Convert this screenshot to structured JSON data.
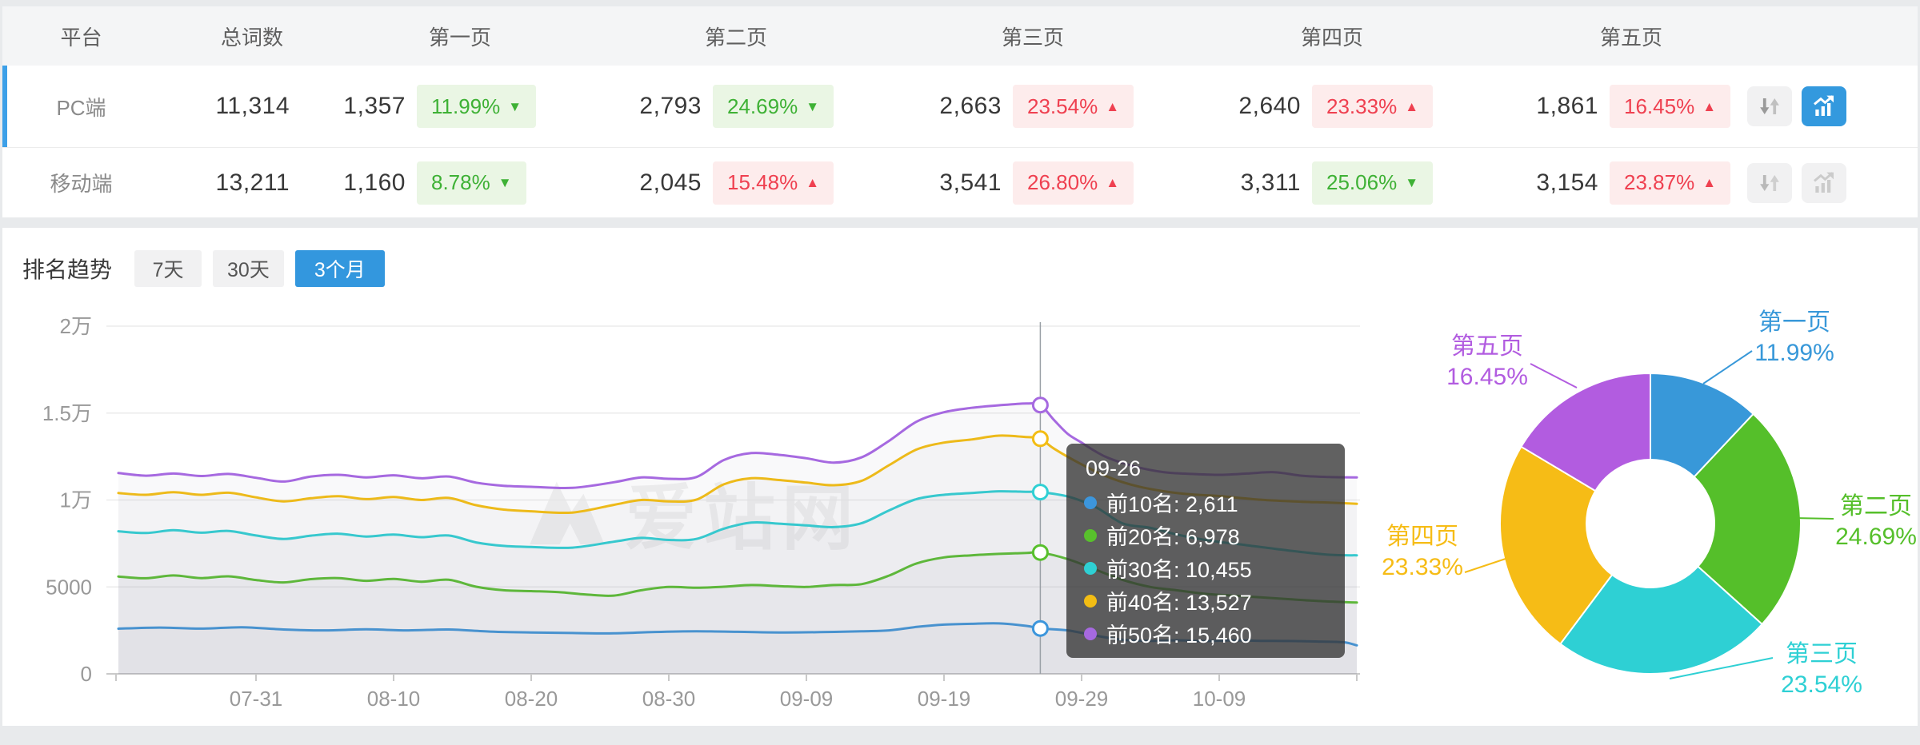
{
  "table": {
    "headers": {
      "platform": "平台",
      "total": "总词数",
      "page1": "第一页",
      "page2": "第二页",
      "page3": "第三页",
      "page4": "第四页",
      "page5": "第五页"
    },
    "rows": [
      {
        "platform": "PC端",
        "total": "11,314",
        "selected": true,
        "pages": [
          {
            "count": "1,357",
            "pct": "11.99%",
            "dir": "down",
            "tone": "good"
          },
          {
            "count": "2,793",
            "pct": "24.69%",
            "dir": "down",
            "tone": "good"
          },
          {
            "count": "2,663",
            "pct": "23.54%",
            "dir": "up",
            "tone": "bad"
          },
          {
            "count": "2,640",
            "pct": "23.33%",
            "dir": "up",
            "tone": "bad"
          },
          {
            "count": "1,861",
            "pct": "16.45%",
            "dir": "up",
            "tone": "bad"
          }
        ],
        "chart_button_active": true
      },
      {
        "platform": "移动端",
        "total": "13,211",
        "selected": false,
        "pages": [
          {
            "count": "1,160",
            "pct": "8.78%",
            "dir": "down",
            "tone": "good"
          },
          {
            "count": "2,045",
            "pct": "15.48%",
            "dir": "up",
            "tone": "bad"
          },
          {
            "count": "3,541",
            "pct": "26.80%",
            "dir": "up",
            "tone": "bad"
          },
          {
            "count": "3,311",
            "pct": "25.06%",
            "dir": "down",
            "tone": "good"
          },
          {
            "count": "3,154",
            "pct": "23.87%",
            "dir": "up",
            "tone": "bad"
          }
        ],
        "chart_button_active": false
      }
    ]
  },
  "trend": {
    "title": "排名趋势",
    "tabs": [
      {
        "label": "7天",
        "active": false
      },
      {
        "label": "30天",
        "active": false
      },
      {
        "label": "3个月",
        "active": true
      }
    ]
  },
  "watermark": {
    "text": "爱站网"
  },
  "tooltip": {
    "title": "09-26",
    "items": [
      {
        "label": "前10名",
        "value": "2,611"
      },
      {
        "label": "前20名",
        "value": "6,978"
      },
      {
        "label": "前30名",
        "value": "10,455"
      },
      {
        "label": "前40名",
        "value": "13,527"
      },
      {
        "label": "前50名",
        "value": "15,460"
      }
    ]
  },
  "chart_data": [
    {
      "type": "line",
      "title": "排名趋势 (3个月)",
      "x_axis": {
        "start_date": "07-21",
        "unit": "day",
        "tick_labels": [
          "07-31",
          "08-10",
          "08-20",
          "08-30",
          "09-09",
          "09-19",
          "09-29",
          "10-09"
        ],
        "tick_days": [
          10,
          20,
          30,
          40,
          50,
          60,
          70,
          80
        ]
      },
      "y_axis": {
        "values": [
          0,
          5000,
          10000,
          15000,
          20000
        ],
        "tick_labels": [
          "0",
          "5000",
          "1万",
          "1.5万",
          "2万"
        ],
        "ylim": [
          0,
          20000
        ],
        "grid": true
      },
      "highlight_day": 67,
      "highlight_date": "09-26",
      "series": [
        {
          "name": "前10名",
          "color": "#3c96dc",
          "points": [
            [
              0,
              2600
            ],
            [
              3,
              2660
            ],
            [
              6,
              2600
            ],
            [
              9,
              2680
            ],
            [
              12,
              2550
            ],
            [
              15,
              2500
            ],
            [
              18,
              2560
            ],
            [
              21,
              2500
            ],
            [
              24,
              2550
            ],
            [
              27,
              2430
            ],
            [
              30,
              2380
            ],
            [
              33,
              2350
            ],
            [
              36,
              2330
            ],
            [
              39,
              2410
            ],
            [
              42,
              2450
            ],
            [
              45,
              2420
            ],
            [
              48,
              2380
            ],
            [
              51,
              2400
            ],
            [
              54,
              2450
            ],
            [
              56,
              2500
            ],
            [
              58,
              2700
            ],
            [
              60,
              2830
            ],
            [
              62,
              2880
            ],
            [
              64,
              2900
            ],
            [
              66,
              2760
            ],
            [
              67,
              2611
            ],
            [
              69,
              2500
            ],
            [
              71,
              2200
            ],
            [
              73,
              1960
            ],
            [
              75,
              1900
            ],
            [
              77,
              1930
            ],
            [
              79,
              1890
            ],
            [
              81,
              1930
            ],
            [
              83,
              1900
            ],
            [
              85,
              1890
            ],
            [
              87,
              1860
            ],
            [
              89,
              1820
            ],
            [
              90,
              1640
            ]
          ]
        },
        {
          "name": "前20名",
          "color": "#58c02c",
          "points": [
            [
              0,
              5600
            ],
            [
              2,
              5500
            ],
            [
              4,
              5660
            ],
            [
              6,
              5510
            ],
            [
              8,
              5610
            ],
            [
              10,
              5400
            ],
            [
              12,
              5260
            ],
            [
              14,
              5450
            ],
            [
              16,
              5510
            ],
            [
              18,
              5350
            ],
            [
              20,
              5460
            ],
            [
              22,
              5300
            ],
            [
              24,
              5410
            ],
            [
              26,
              5010
            ],
            [
              28,
              4810
            ],
            [
              30,
              4760
            ],
            [
              32,
              4700
            ],
            [
              34,
              4560
            ],
            [
              36,
              4500
            ],
            [
              38,
              4810
            ],
            [
              40,
              5000
            ],
            [
              42,
              4950
            ],
            [
              44,
              5010
            ],
            [
              46,
              5110
            ],
            [
              48,
              5050
            ],
            [
              50,
              5000
            ],
            [
              52,
              5110
            ],
            [
              54,
              5160
            ],
            [
              56,
              5650
            ],
            [
              58,
              6350
            ],
            [
              60,
              6700
            ],
            [
              62,
              6820
            ],
            [
              64,
              6900
            ],
            [
              66,
              6950
            ],
            [
              67,
              6978
            ],
            [
              69,
              6600
            ],
            [
              71,
              6000
            ],
            [
              73,
              5400
            ],
            [
              75,
              5000
            ],
            [
              77,
              4800
            ],
            [
              79,
              4600
            ],
            [
              81,
              4500
            ],
            [
              83,
              4400
            ],
            [
              85,
              4300
            ],
            [
              87,
              4200
            ],
            [
              90,
              4100
            ]
          ]
        },
        {
          "name": "前30名",
          "color": "#2fd0d4",
          "points": [
            [
              0,
              8200
            ],
            [
              2,
              8100
            ],
            [
              4,
              8260
            ],
            [
              6,
              8120
            ],
            [
              8,
              8220
            ],
            [
              10,
              7960
            ],
            [
              12,
              7760
            ],
            [
              14,
              7950
            ],
            [
              16,
              8060
            ],
            [
              18,
              7900
            ],
            [
              20,
              8010
            ],
            [
              22,
              7860
            ],
            [
              24,
              7960
            ],
            [
              26,
              7560
            ],
            [
              28,
              7360
            ],
            [
              30,
              7300
            ],
            [
              33,
              7260
            ],
            [
              36,
              7600
            ],
            [
              38,
              7820
            ],
            [
              40,
              7700
            ],
            [
              42,
              7760
            ],
            [
              44,
              8350
            ],
            [
              46,
              8700
            ],
            [
              48,
              8640
            ],
            [
              50,
              8540
            ],
            [
              52,
              8440
            ],
            [
              54,
              8660
            ],
            [
              56,
              9400
            ],
            [
              58,
              10050
            ],
            [
              60,
              10300
            ],
            [
              62,
              10400
            ],
            [
              64,
              10500
            ],
            [
              66,
              10470
            ],
            [
              67,
              10455
            ],
            [
              69,
              10200
            ],
            [
              71,
              9600
            ],
            [
              73,
              8650
            ],
            [
              75,
              8400
            ],
            [
              77,
              8000
            ],
            [
              79,
              7700
            ],
            [
              82,
              7400
            ],
            [
              85,
              7100
            ],
            [
              88,
              6850
            ],
            [
              90,
              6820
            ]
          ]
        },
        {
          "name": "前40名",
          "color": "#f3bd14",
          "points": [
            [
              0,
              10400
            ],
            [
              2,
              10300
            ],
            [
              4,
              10450
            ],
            [
              6,
              10300
            ],
            [
              8,
              10420
            ],
            [
              10,
              10150
            ],
            [
              12,
              9920
            ],
            [
              14,
              10100
            ],
            [
              16,
              10220
            ],
            [
              18,
              10050
            ],
            [
              20,
              10170
            ],
            [
              22,
              10000
            ],
            [
              24,
              10120
            ],
            [
              26,
              9700
            ],
            [
              28,
              9450
            ],
            [
              30,
              9350
            ],
            [
              33,
              9280
            ],
            [
              36,
              9720
            ],
            [
              38,
              10000
            ],
            [
              40,
              9920
            ],
            [
              42,
              10020
            ],
            [
              44,
              10900
            ],
            [
              46,
              11250
            ],
            [
              48,
              11150
            ],
            [
              50,
              11000
            ],
            [
              52,
              10850
            ],
            [
              54,
              11100
            ],
            [
              56,
              12000
            ],
            [
              58,
              12900
            ],
            [
              60,
              13300
            ],
            [
              62,
              13480
            ],
            [
              64,
              13700
            ],
            [
              66,
              13620
            ],
            [
              67,
              13527
            ],
            [
              68,
              12950
            ],
            [
              70,
              12050
            ],
            [
              72,
              11300
            ],
            [
              74,
              10800
            ],
            [
              76,
              10500
            ],
            [
              78,
              10320
            ],
            [
              80,
              10230
            ],
            [
              83,
              10020
            ],
            [
              86,
              9900
            ],
            [
              88,
              9850
            ],
            [
              90,
              9780
            ]
          ]
        },
        {
          "name": "前50名",
          "color": "#a669e0",
          "points": [
            [
              0,
              11550
            ],
            [
              2,
              11400
            ],
            [
              4,
              11520
            ],
            [
              6,
              11380
            ],
            [
              8,
              11500
            ],
            [
              10,
              11280
            ],
            [
              12,
              11060
            ],
            [
              14,
              11350
            ],
            [
              16,
              11450
            ],
            [
              18,
              11300
            ],
            [
              20,
              11420
            ],
            [
              22,
              11250
            ],
            [
              24,
              11350
            ],
            [
              26,
              11000
            ],
            [
              28,
              10820
            ],
            [
              30,
              10760
            ],
            [
              33,
              10700
            ],
            [
              36,
              11020
            ],
            [
              38,
              11300
            ],
            [
              40,
              11220
            ],
            [
              42,
              11320
            ],
            [
              44,
              12300
            ],
            [
              46,
              12700
            ],
            [
              48,
              12600
            ],
            [
              50,
              12400
            ],
            [
              52,
              12150
            ],
            [
              54,
              12450
            ],
            [
              56,
              13400
            ],
            [
              58,
              14500
            ],
            [
              60,
              15050
            ],
            [
              62,
              15300
            ],
            [
              64,
              15450
            ],
            [
              66,
              15550
            ],
            [
              67,
              15460
            ],
            [
              68,
              14600
            ],
            [
              69,
              13800
            ],
            [
              70,
              13300
            ],
            [
              71,
              12800
            ],
            [
              72,
              12400
            ],
            [
              74,
              11900
            ],
            [
              76,
              11600
            ],
            [
              78,
              11500
            ],
            [
              80,
              11450
            ],
            [
              82,
              11520
            ],
            [
              84,
              11600
            ],
            [
              86,
              11400
            ],
            [
              88,
              11320
            ],
            [
              90,
              11300
            ]
          ]
        }
      ]
    },
    {
      "type": "donut",
      "slices": [
        {
          "label": "第一页",
          "value": 11.99,
          "display": "11.99%",
          "color": "#3898d9"
        },
        {
          "label": "第二页",
          "value": 24.69,
          "display": "24.69%",
          "color": "#55bf2a"
        },
        {
          "label": "第三页",
          "value": 23.54,
          "display": "23.54%",
          "color": "#2ed0d4"
        },
        {
          "label": "第四页",
          "value": 23.33,
          "display": "23.33%",
          "color": "#f6bc16"
        },
        {
          "label": "第五页",
          "value": 16.45,
          "display": "16.45%",
          "color": "#b25ce0"
        }
      ]
    }
  ]
}
